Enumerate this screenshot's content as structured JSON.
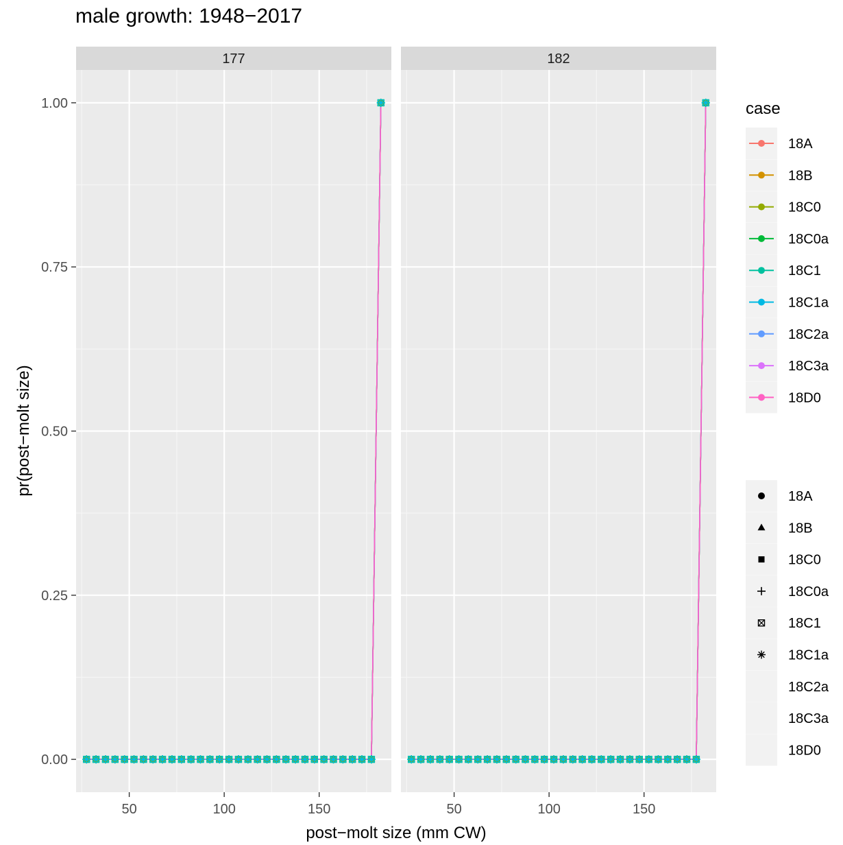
{
  "chart_data": {
    "type": "line",
    "title": "male growth: 1948−2017",
    "xlabel": "post−molt size (mm CW)",
    "ylabel": "pr(post−molt size)",
    "xlim": [
      22,
      188
    ],
    "ylim": [
      -0.05,
      1.05
    ],
    "x_ticks": [
      50,
      100,
      150
    ],
    "x_tick_labels": [
      "50",
      "100",
      "150"
    ],
    "y_ticks": [
      0,
      0.25,
      0.5,
      0.75,
      1
    ],
    "y_tick_labels": [
      "0.00",
      "0.25",
      "0.50",
      "0.75",
      "1.00"
    ],
    "grid": true,
    "legend_placement": "right",
    "colors": {
      "18A": "#F8766D",
      "18B": "#D39200",
      "18C0": "#93AA00",
      "18C0a": "#00BA38",
      "18C1": "#00C19F",
      "18C1a": "#00B9E3",
      "18C2a": "#619CFF",
      "18C3a": "#DB72FB",
      "18D0": "#FF61C3"
    },
    "color_legend": {
      "title": "case",
      "entries": [
        "18A",
        "18B",
        "18C0",
        "18C0a",
        "18C1",
        "18C1a",
        "18C2a",
        "18C3a",
        "18D0"
      ]
    },
    "shape_legend": {
      "entries": [
        {
          "label": "18A",
          "shape": "circle"
        },
        {
          "label": "18B",
          "shape": "triangle"
        },
        {
          "label": "18C0",
          "shape": "square"
        },
        {
          "label": "18C0a",
          "shape": "plus"
        },
        {
          "label": "18C1",
          "shape": "boxed-x"
        },
        {
          "label": "18C1a",
          "shape": "asterisk"
        },
        {
          "label": "18C2a",
          "shape": "none"
        },
        {
          "label": "18C3a",
          "shape": "none"
        },
        {
          "label": "18D0",
          "shape": "none"
        }
      ]
    },
    "panels": [
      {
        "label": "177",
        "x_start": 27.5,
        "x_step": 5,
        "x_last_zero": 177.5,
        "x_peak": 182.5,
        "peak_y": 1
      },
      {
        "label": "182",
        "x_start": 27.5,
        "x_step": 5,
        "x_last_zero": 177.5,
        "x_peak": 182.5,
        "peak_y": 1
      }
    ]
  }
}
